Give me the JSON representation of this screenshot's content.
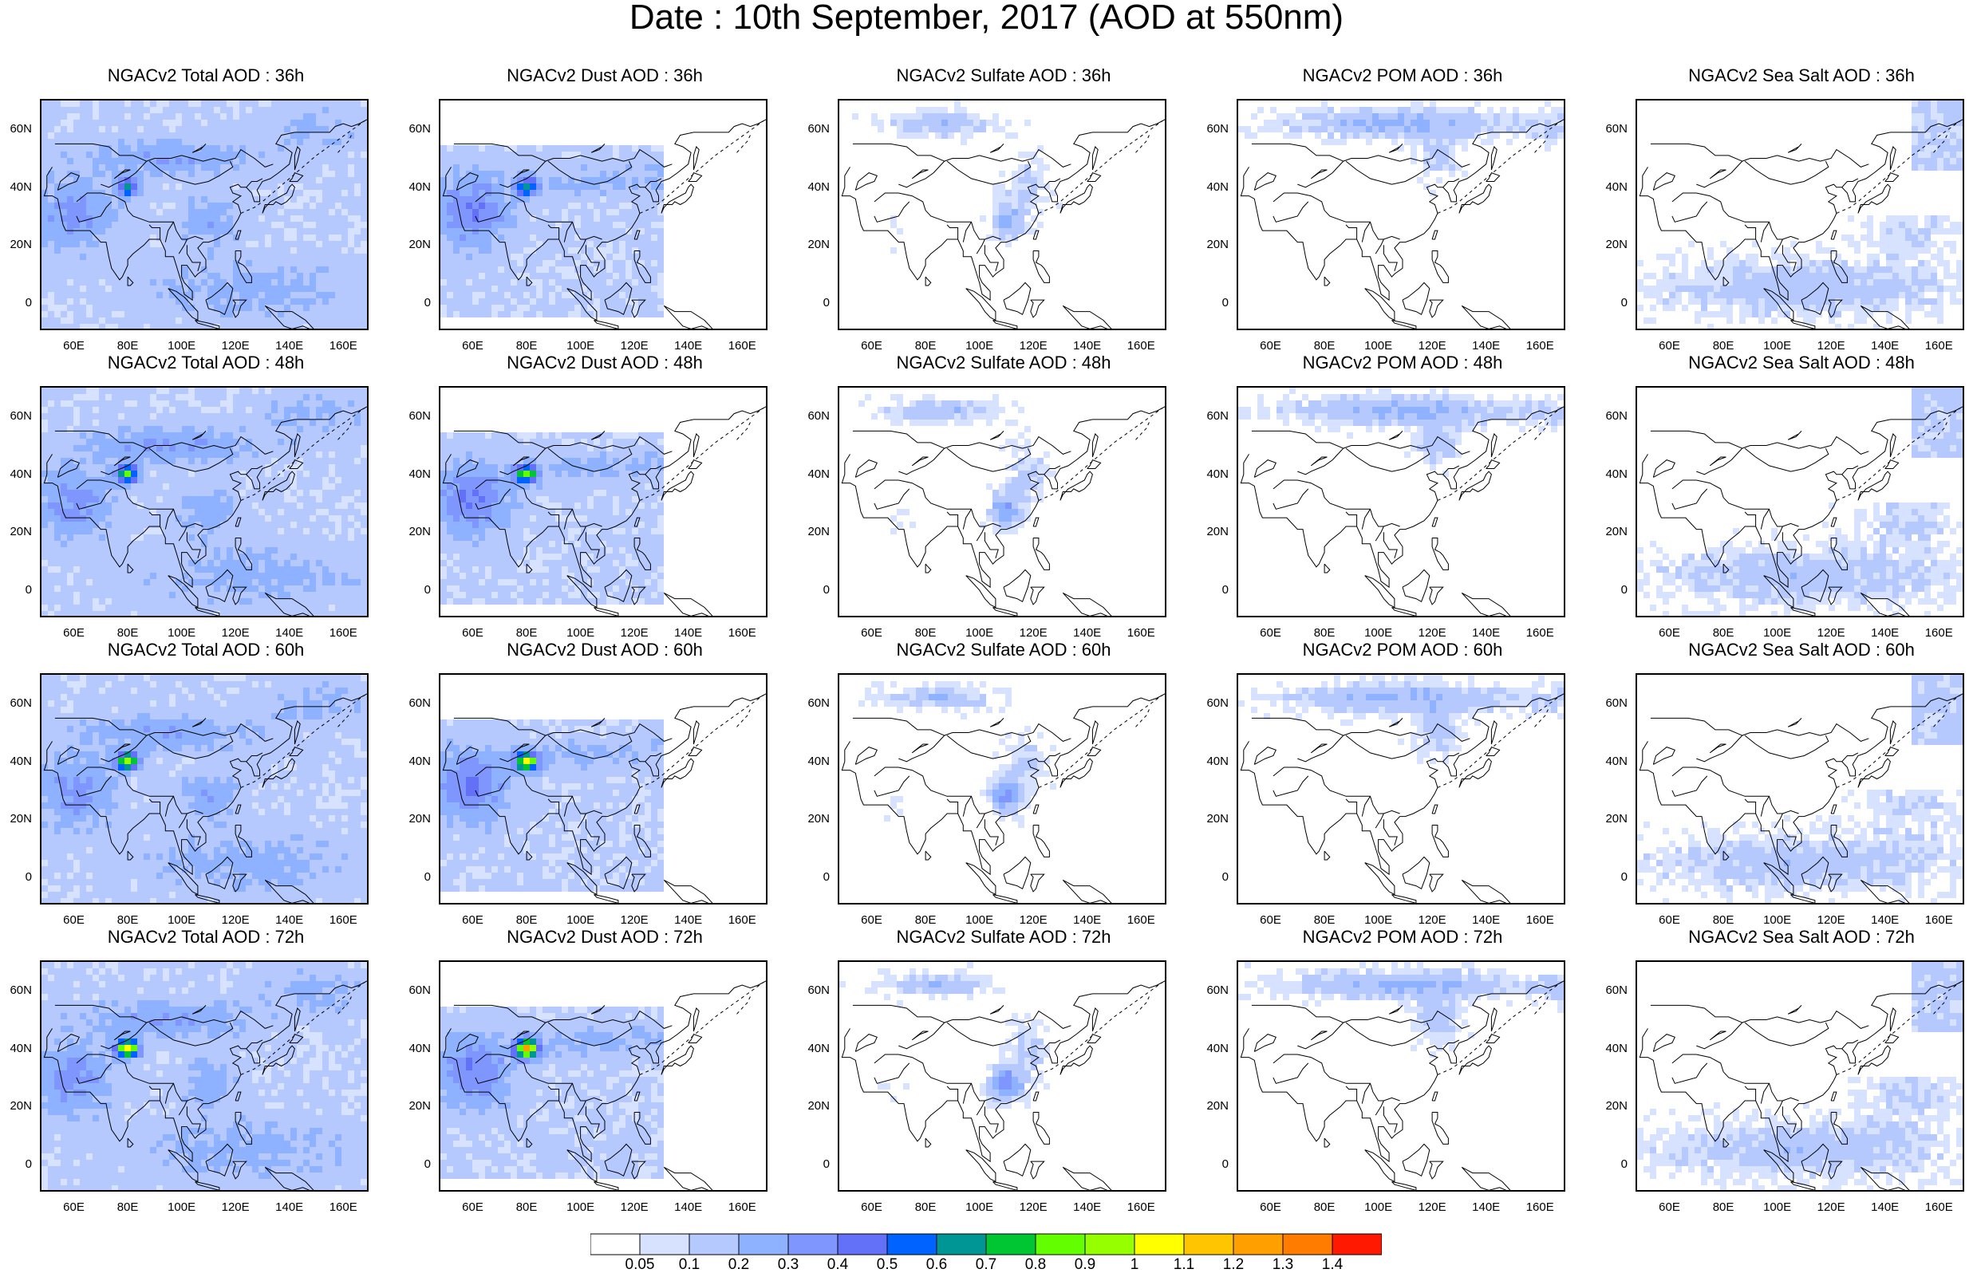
{
  "title": "Date : 10th September, 2017 (AOD at 550nm)",
  "panels": [
    {
      "id": "total-36",
      "title": "NGACv2 Total AOD : 36h",
      "species": "total"
    },
    {
      "id": "dust-36",
      "title": "NGACv2 Dust AOD : 36h",
      "species": "dust"
    },
    {
      "id": "sulfate-36",
      "title": "NGACv2 Sulfate AOD : 36h",
      "species": "sulfate"
    },
    {
      "id": "pom-36",
      "title": "NGACv2 POM AOD : 36h",
      "species": "pom"
    },
    {
      "id": "seasalt-36",
      "title": "NGACv2 Sea Salt AOD : 36h",
      "species": "seasalt"
    },
    {
      "id": "total-48",
      "title": "NGACv2 Total AOD : 48h",
      "species": "total"
    },
    {
      "id": "dust-48",
      "title": "NGACv2 Dust AOD : 48h",
      "species": "dust"
    },
    {
      "id": "sulfate-48",
      "title": "NGACv2 Sulfate AOD : 48h",
      "species": "sulfate"
    },
    {
      "id": "pom-48",
      "title": "NGACv2 POM AOD : 48h",
      "species": "pom"
    },
    {
      "id": "seasalt-48",
      "title": "NGACv2 Sea Salt AOD : 48h",
      "species": "seasalt"
    },
    {
      "id": "total-60",
      "title": "NGACv2 Total AOD : 60h",
      "species": "total"
    },
    {
      "id": "dust-60",
      "title": "NGACv2 Dust AOD : 60h",
      "species": "dust"
    },
    {
      "id": "sulfate-60",
      "title": "NGACv2 Sulfate AOD : 60h",
      "species": "sulfate"
    },
    {
      "id": "pom-60",
      "title": "NGACv2 POM AOD : 60h",
      "species": "pom"
    },
    {
      "id": "seasalt-60",
      "title": "NGACv2 Sea Salt AOD : 60h",
      "species": "seasalt"
    },
    {
      "id": "total-72",
      "title": "NGACv2 Total AOD : 72h",
      "species": "total"
    },
    {
      "id": "dust-72",
      "title": "NGACv2 Dust AOD : 72h",
      "species": "dust"
    },
    {
      "id": "sulfate-72",
      "title": "NGACv2 Sulfate AOD : 72h",
      "species": "sulfate"
    },
    {
      "id": "pom-72",
      "title": "NGACv2 POM AOD : 72h",
      "species": "pom"
    },
    {
      "id": "seasalt-72",
      "title": "NGACv2 Sea Salt  AOD : 72h",
      "species": "seasalt"
    }
  ],
  "lon_ticks": [
    "60E",
    "80E",
    "100E",
    "120E",
    "140E",
    "160E"
  ],
  "lat_ticks": [
    "60N",
    "40N",
    "20N",
    "0"
  ],
  "colorbar": {
    "labels": [
      "0.05",
      "0.1",
      "0.2",
      "0.3",
      "0.4",
      "0.5",
      "0.6",
      "0.7",
      "0.8",
      "0.9",
      "1",
      "1.1",
      "1.2",
      "1.3",
      "1.4"
    ],
    "colors": [
      "#ffffff",
      "#d6e2ff",
      "#b5c9ff",
      "#8eb2ff",
      "#7f96ff",
      "#6370f8",
      "#0063ff",
      "#009696",
      "#00c633",
      "#63ff00",
      "#96ff00",
      "#ffff00",
      "#ffc600",
      "#ffa000",
      "#ff7c00",
      "#ff1900"
    ]
  }
}
